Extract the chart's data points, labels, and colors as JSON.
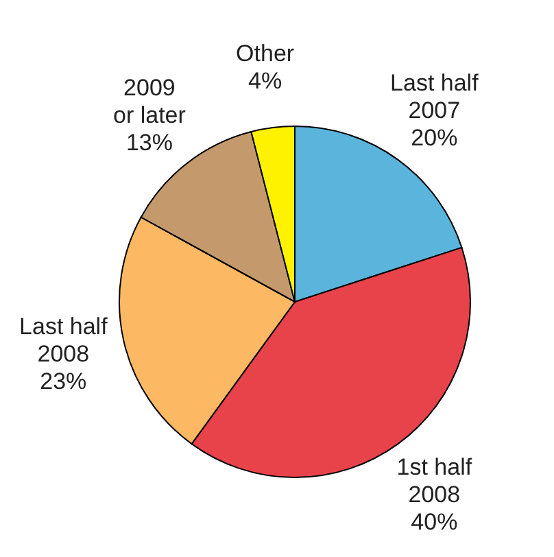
{
  "chart_data": {
    "type": "pie",
    "categories": [
      "Last half 2007",
      "1st half 2008",
      "Last half 2008",
      "2009 or later",
      "Other"
    ],
    "values": [
      20,
      40,
      23,
      13,
      4
    ],
    "value_labels": [
      "20%",
      "40%",
      "23%",
      "13%",
      "4%"
    ],
    "colors": [
      "#5ab4dc",
      "#e8434a",
      "#fdb863",
      "#c49a6c",
      "#fff200"
    ],
    "legend": false
  }
}
